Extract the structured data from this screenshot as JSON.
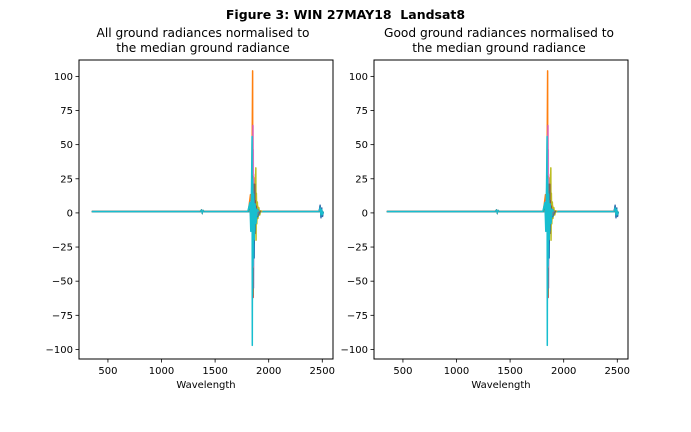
{
  "figure_title": "Figure 3: WIN 27MAY18  Landsat8",
  "chart_data": [
    {
      "type": "line",
      "title_line1": "All ground radiances normalised to",
      "title_line2": "the median ground radiance",
      "xlabel": "Wavelength",
      "ylabel": "",
      "xlim": [
        230,
        2600
      ],
      "ylim": [
        -107,
        112
      ],
      "xticks": [
        "500",
        "1000",
        "1500",
        "2000",
        "2500"
      ],
      "yticks": [
        "100",
        "75",
        "50",
        "25",
        "0",
        "−25",
        "−50",
        "−75",
        "−100"
      ],
      "baseline_x": [
        350,
        2500
      ],
      "series": [
        {
          "color": "#ff7f0e",
          "spike_x": 1850,
          "spike_values": [
            103,
            -62
          ]
        },
        {
          "color": "#d62728",
          "spike_x": 1852,
          "spike_values": [
            63,
            -62
          ]
        },
        {
          "color": "#9467bd",
          "spike_x": 1856,
          "spike_values": [
            45,
            -55
          ]
        },
        {
          "color": "#e377c2",
          "spike_x": 1854,
          "spike_values": [
            63,
            -40
          ]
        },
        {
          "color": "#bcbd22",
          "spike_x": 1880,
          "spike_values": [
            32,
            -20
          ]
        },
        {
          "color": "#2ca02c",
          "spike_x": 1848,
          "spike_values": [
            26,
            -60
          ]
        },
        {
          "color": "#8c564b",
          "spike_x": 1870,
          "spike_values": [
            20,
            -15
          ]
        },
        {
          "color": "#1f77b4",
          "spike_x": 1862,
          "spike_values": [
            15,
            -33
          ]
        },
        {
          "color": "#7f7f7f",
          "spike_x": 1858,
          "spike_values": [
            20,
            -20
          ]
        },
        {
          "color": "#17becf",
          "spike_x": 1845,
          "spike_values": [
            55,
            -97
          ]
        }
      ]
    },
    {
      "type": "line",
      "title_line1": "Good ground radiances normalised to",
      "title_line2": "the median ground radiance",
      "xlabel": "Wavelength",
      "ylabel": "",
      "xlim": [
        230,
        2600
      ],
      "ylim": [
        -107,
        112
      ],
      "xticks": [
        "500",
        "1000",
        "1500",
        "2000",
        "2500"
      ],
      "yticks": [
        "100",
        "75",
        "50",
        "25",
        "0",
        "−25",
        "−50",
        "−75",
        "−100"
      ],
      "baseline_x": [
        350,
        2500
      ],
      "series": [
        {
          "color": "#ff7f0e",
          "spike_x": 1850,
          "spike_values": [
            103,
            -62
          ]
        },
        {
          "color": "#d62728",
          "spike_x": 1852,
          "spike_values": [
            63,
            -62
          ]
        },
        {
          "color": "#9467bd",
          "spike_x": 1856,
          "spike_values": [
            45,
            -55
          ]
        },
        {
          "color": "#e377c2",
          "spike_x": 1854,
          "spike_values": [
            63,
            -40
          ]
        },
        {
          "color": "#bcbd22",
          "spike_x": 1880,
          "spike_values": [
            32,
            -20
          ]
        },
        {
          "color": "#2ca02c",
          "spike_x": 1848,
          "spike_values": [
            26,
            -60
          ]
        },
        {
          "color": "#8c564b",
          "spike_x": 1870,
          "spike_values": [
            20,
            -15
          ]
        },
        {
          "color": "#1f77b4",
          "spike_x": 1862,
          "spike_values": [
            15,
            -33
          ]
        },
        {
          "color": "#7f7f7f",
          "spike_x": 1858,
          "spike_values": [
            20,
            -20
          ]
        },
        {
          "color": "#17becf",
          "spike_x": 1845,
          "spike_values": [
            55,
            -97
          ]
        }
      ]
    }
  ]
}
